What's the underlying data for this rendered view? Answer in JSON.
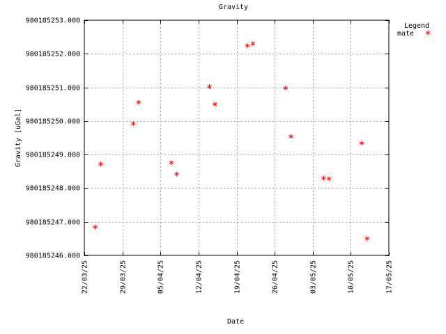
{
  "chart_data": {
    "type": "scatter",
    "title": "Gravity",
    "xlabel": "Date",
    "ylabel": "Gravity [uGal]",
    "x_range": [
      "2025-03-22",
      "2025-05-17"
    ],
    "ylim": [
      980185246.0,
      980185253.0
    ],
    "x_ticks": [
      {
        "date": "2025-03-22",
        "label": "22/03/25"
      },
      {
        "date": "2025-03-29",
        "label": "29/03/25"
      },
      {
        "date": "2025-04-05",
        "label": "05/04/25"
      },
      {
        "date": "2025-04-12",
        "label": "12/04/25"
      },
      {
        "date": "2025-04-19",
        "label": "19/04/25"
      },
      {
        "date": "2025-04-26",
        "label": "26/04/25"
      },
      {
        "date": "2025-05-03",
        "label": "03/05/25"
      },
      {
        "date": "2025-05-10",
        "label": "10/05/25"
      },
      {
        "date": "2025-05-17",
        "label": "17/05/25"
      }
    ],
    "y_ticks": [
      {
        "value": 980185246.0,
        "label": "980185246.000"
      },
      {
        "value": 980185247.0,
        "label": "980185247.000"
      },
      {
        "value": 980185248.0,
        "label": "980185248.000"
      },
      {
        "value": 980185249.0,
        "label": "980185249.000"
      },
      {
        "value": 980185250.0,
        "label": "980185250.000"
      },
      {
        "value": 980185251.0,
        "label": "980185251.000"
      },
      {
        "value": 980185252.0,
        "label": "980185252.000"
      },
      {
        "value": 980185253.0,
        "label": "980185253.000"
      }
    ],
    "grid": true,
    "legend": {
      "title": "Legend",
      "position": "top-right"
    },
    "series": [
      {
        "name": "mate",
        "color": "#ff0000",
        "marker": "asterisk",
        "points": [
          {
            "x": "2025-03-24T00:00",
            "y": 980185246.84
          },
          {
            "x": "2025-03-25T00:00",
            "y": 980185248.72
          },
          {
            "x": "2025-03-31T00:00",
            "y": 980185249.92
          },
          {
            "x": "2025-04-01T00:00",
            "y": 980185250.56
          },
          {
            "x": "2025-04-07T00:00",
            "y": 980185248.76
          },
          {
            "x": "2025-04-08T00:00",
            "y": 980185248.42
          },
          {
            "x": "2025-04-14T00:00",
            "y": 980185251.02
          },
          {
            "x": "2025-04-15T00:00",
            "y": 980185250.5
          },
          {
            "x": "2025-04-21T00:00",
            "y": 980185252.24
          },
          {
            "x": "2025-04-22T00:00",
            "y": 980185252.3
          },
          {
            "x": "2025-04-28T00:00",
            "y": 980185250.98
          },
          {
            "x": "2025-04-29T00:00",
            "y": 980185249.54
          },
          {
            "x": "2025-05-05T00:00",
            "y": 980185248.3
          },
          {
            "x": "2025-05-06T00:00",
            "y": 980185248.28
          },
          {
            "x": "2025-05-12T00:00",
            "y": 980185249.34
          },
          {
            "x": "2025-05-13T00:00",
            "y": 980185246.5
          }
        ]
      }
    ]
  }
}
